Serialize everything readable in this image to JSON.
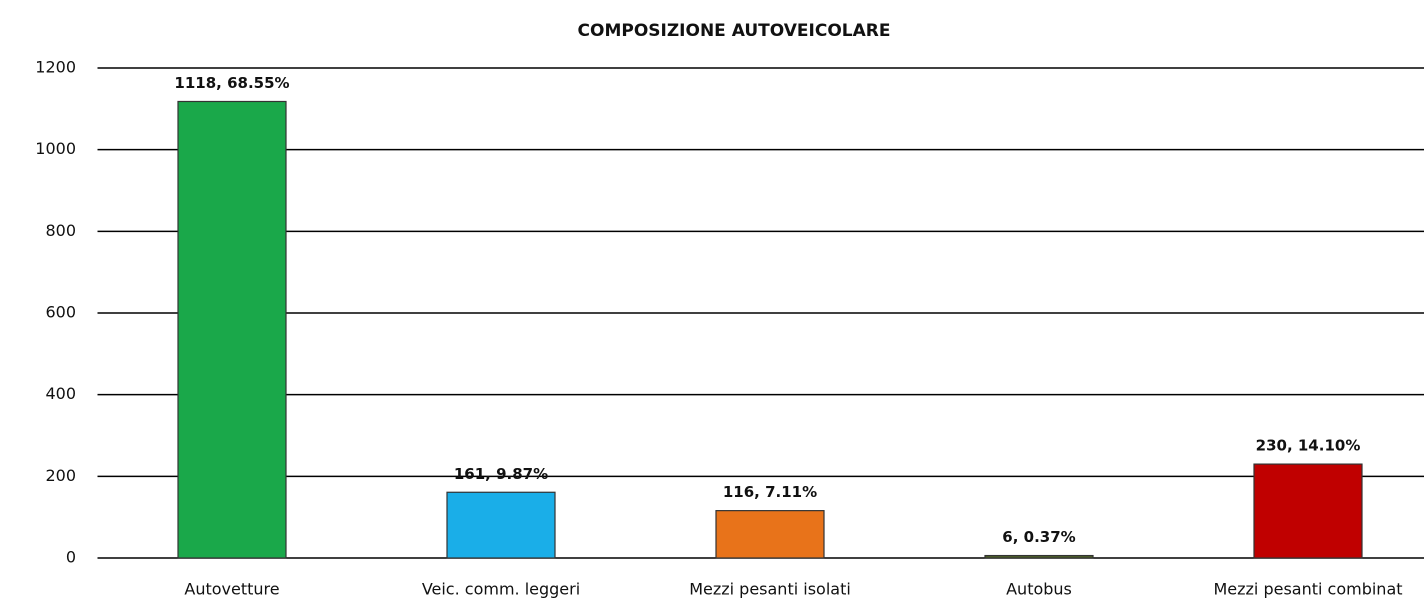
{
  "chart_data": {
    "type": "bar",
    "title": "COMPOSIZIONE AUTOVEICOLARE",
    "categories": [
      "Autovetture",
      "Veic. comm. leggeri",
      "Mezzi pesanti isolati",
      "Autobus",
      "Mezzi pesanti combinat"
    ],
    "values": [
      1118,
      161,
      116,
      6,
      230
    ],
    "value_labels": [
      "1118, 68.55%",
      "161, 9.87%",
      "116, 7.11%",
      "6, 0.37%",
      "230, 14.10%"
    ],
    "colors": [
      "#1aa84a",
      "#1aaee8",
      "#e8731a",
      "#4f6228",
      "#c00000"
    ],
    "ylim": [
      0,
      1200
    ],
    "yticks": [
      0,
      200,
      400,
      600,
      800,
      1000,
      1200
    ],
    "grid": true
  }
}
